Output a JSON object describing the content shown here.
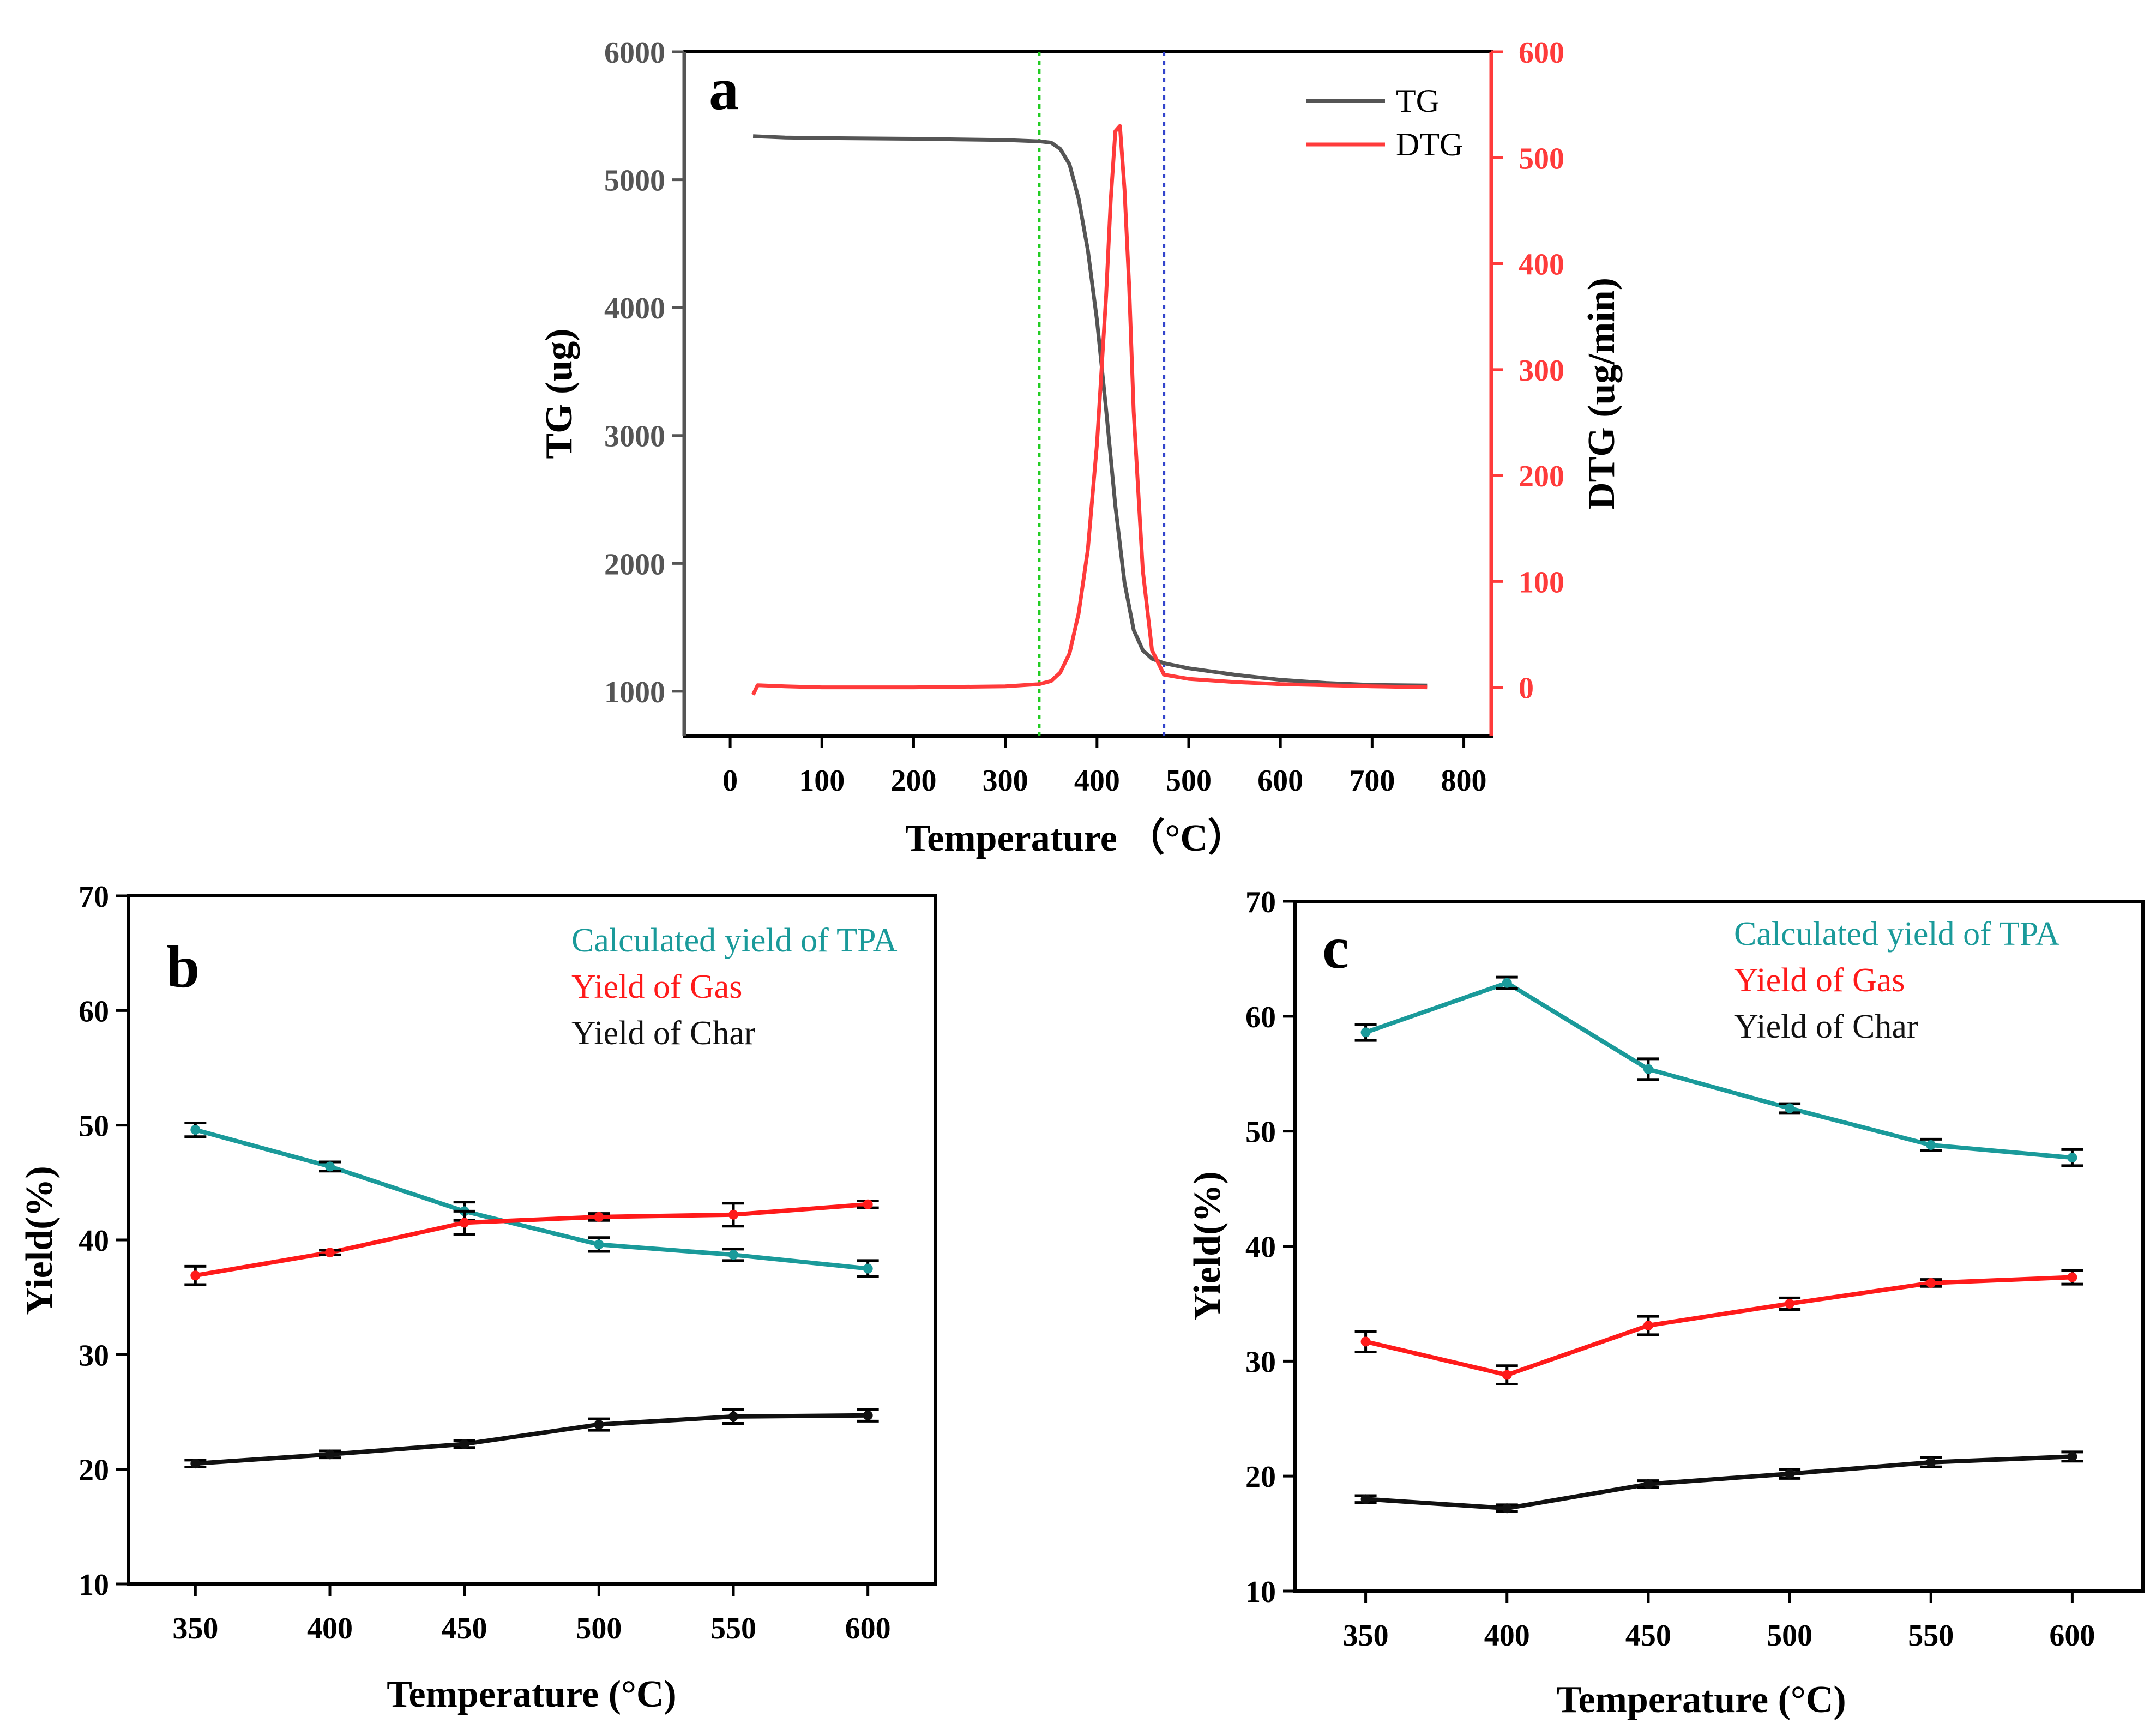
{
  "chart_data": [
    {
      "id": "a",
      "type": "line",
      "panel_label": "a",
      "xlabel": "Temperature （°C）",
      "ylabel": "TG (ug)",
      "y2label": "DTG (ug/min)",
      "xlim": [
        -50,
        830
      ],
      "ylim": [
        650,
        6000
      ],
      "y2lim": [
        -46,
        600
      ],
      "xticks": [
        0,
        100,
        200,
        300,
        400,
        500,
        600,
        700,
        800
      ],
      "yticks": [
        1000,
        2000,
        3000,
        4000,
        5000,
        6000
      ],
      "y2ticks": [
        0,
        100,
        200,
        300,
        400,
        500,
        600
      ],
      "reference_lines": [
        {
          "x": 337,
          "color": "#22cc22",
          "style": "dotted"
        },
        {
          "x": 473,
          "color": "#3344cc",
          "style": "dotted"
        }
      ],
      "series": [
        {
          "name": "TG",
          "axis": "left",
          "color": "#555555",
          "x": [
            25,
            60,
            100,
            200,
            250,
            300,
            337,
            350,
            360,
            370,
            380,
            390,
            400,
            410,
            420,
            430,
            440,
            450,
            460,
            473,
            500,
            550,
            600,
            650,
            700,
            760
          ],
          "y": [
            5340,
            5330,
            5325,
            5320,
            5315,
            5310,
            5300,
            5290,
            5240,
            5120,
            4850,
            4450,
            3900,
            3200,
            2450,
            1850,
            1480,
            1320,
            1255,
            1220,
            1180,
            1130,
            1090,
            1065,
            1050,
            1045
          ]
        },
        {
          "name": "DTG",
          "axis": "right",
          "color": "#ff3b3b",
          "x": [
            25,
            30,
            60,
            100,
            200,
            300,
            337,
            350,
            360,
            370,
            380,
            390,
            400,
            410,
            415,
            420,
            425,
            430,
            435,
            440,
            450,
            460,
            473,
            500,
            550,
            600,
            650,
            700,
            760
          ],
          "y": [
            -7,
            2,
            1,
            0,
            0,
            1,
            3,
            6,
            14,
            32,
            70,
            130,
            230,
            370,
            460,
            525,
            530,
            470,
            380,
            260,
            110,
            35,
            12,
            8,
            5,
            3,
            2,
            1,
            0
          ]
        }
      ]
    },
    {
      "id": "b",
      "type": "line",
      "panel_label": "b",
      "xlabel": "Temperature (°C)",
      "ylabel": "Yield(%)",
      "xlim": [
        325,
        625
      ],
      "ylim": [
        10,
        70
      ],
      "yticks": [
        10,
        20,
        30,
        40,
        50,
        60,
        70
      ],
      "categories": [
        350,
        400,
        450,
        500,
        550,
        600
      ],
      "series": [
        {
          "name": "Calculated yield of TPA",
          "color": "#1a9a9a",
          "values": [
            49.6,
            46.4,
            42.5,
            39.6,
            38.7,
            37.5
          ],
          "errors": [
            0.6,
            0.4,
            0.8,
            0.6,
            0.5,
            0.7
          ]
        },
        {
          "name": "Yield of Gas",
          "color": "#ff1a1a",
          "values": [
            36.9,
            38.9,
            41.5,
            42.0,
            42.2,
            43.1
          ],
          "errors": [
            0.8,
            0.2,
            1.0,
            0.3,
            1.0,
            0.3
          ]
        },
        {
          "name": "Yield of Char",
          "color": "#111111",
          "values": [
            20.5,
            21.3,
            22.2,
            23.9,
            24.6,
            24.7
          ],
          "errors": [
            0.3,
            0.3,
            0.3,
            0.5,
            0.6,
            0.5
          ]
        }
      ]
    },
    {
      "id": "c",
      "type": "line",
      "panel_label": "c",
      "xlabel": "Temperature (°C)",
      "ylabel": "Yield(%)",
      "xlim": [
        325,
        625
      ],
      "ylim": [
        10,
        70
      ],
      "yticks": [
        10,
        20,
        30,
        40,
        50,
        60,
        70
      ],
      "categories": [
        350,
        400,
        450,
        500,
        550,
        600
      ],
      "series": [
        {
          "name": "Calculated yield of TPA",
          "color": "#1a9a9a",
          "values": [
            58.6,
            62.9,
            55.4,
            52.0,
            48.8,
            47.7
          ],
          "errors": [
            0.7,
            0.5,
            0.9,
            0.4,
            0.5,
            0.7
          ]
        },
        {
          "name": "Yield of Gas",
          "color": "#ff1a1a",
          "values": [
            31.7,
            28.8,
            33.1,
            35.0,
            36.8,
            37.3
          ],
          "errors": [
            0.9,
            0.8,
            0.8,
            0.5,
            0.3,
            0.6
          ]
        },
        {
          "name": "Yield of Char",
          "color": "#111111",
          "values": [
            18.0,
            17.2,
            19.3,
            20.2,
            21.2,
            21.7
          ],
          "errors": [
            0.3,
            0.3,
            0.3,
            0.4,
            0.4,
            0.4
          ]
        }
      ]
    }
  ]
}
